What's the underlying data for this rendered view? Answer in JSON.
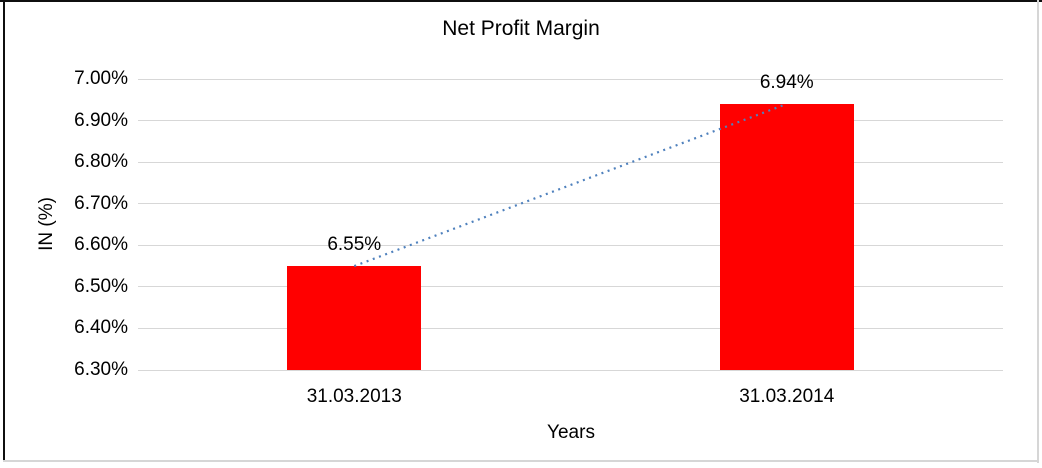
{
  "chart_data": {
    "type": "bar",
    "title": "Net Profit Margin",
    "xlabel": "Years",
    "ylabel": "IN (%)",
    "categories": [
      "31.03.2013",
      "31.03.2014"
    ],
    "values": [
      6.55,
      6.94
    ],
    "value_labels": [
      "6.55%",
      "6.94%"
    ],
    "ylim": [
      6.3,
      7.0
    ],
    "ytick_step": 0.1,
    "ytick_labels": [
      "6.30%",
      "6.40%",
      "6.50%",
      "6.60%",
      "6.70%",
      "6.80%",
      "6.90%",
      "7.00%"
    ],
    "grid": true,
    "legend": "none",
    "trendline": {
      "style": "dotted",
      "from": 6.55,
      "to": 6.94
    },
    "colors": {
      "bar": "#FF0000",
      "gridline": "#D7D7D7",
      "trendline": "#4F81BD",
      "text": "#000000",
      "frame_dark": "#0F0F0F",
      "frame_light": "#D6D6D6",
      "background": "#FFFFFF"
    }
  }
}
